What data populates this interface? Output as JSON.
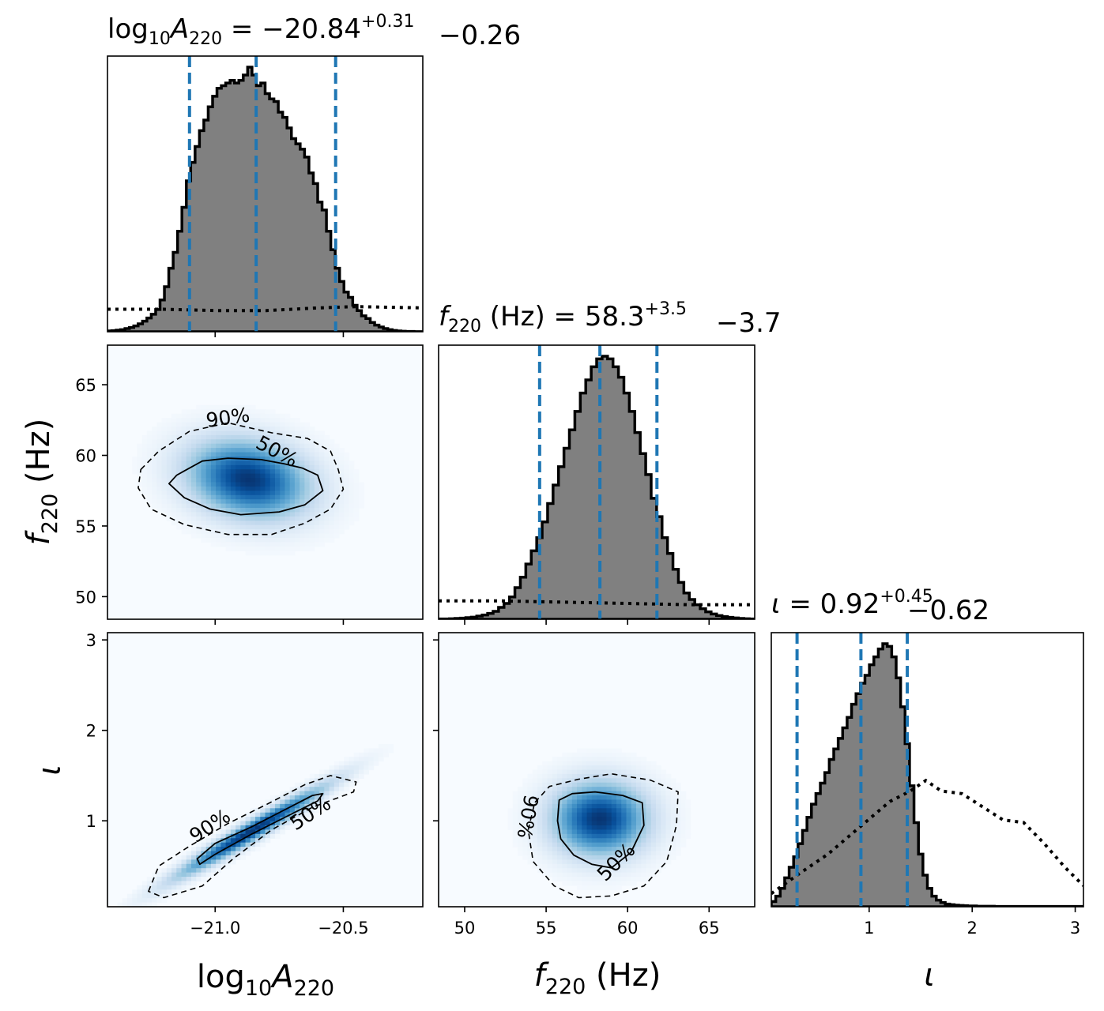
{
  "chart_data": {
    "type": "corner",
    "parameters": [
      {
        "key": "logA",
        "label_main": "log",
        "label_sub1": "10",
        "label_mid": "A",
        "label_sub2": "220",
        "label_unit": "",
        "title_main": "log",
        "title_sub1": "10",
        "title_mid": "A",
        "title_sub2": "220",
        "title_rest": " = −20.84",
        "median": -20.84,
        "err_plus": "+0.31",
        "err_minus": "−0.26",
        "range": [
          -21.42,
          -20.19
        ],
        "ticks": [
          -21.0,
          -20.5
        ],
        "tick_labels": [
          "−21.0",
          "−20.5"
        ],
        "quantiles": [
          -21.1,
          -20.84,
          -20.53
        ]
      },
      {
        "key": "f220",
        "label_main": "f",
        "label_sub1": "220",
        "label_unit": " (Hz)",
        "title_main": "f",
        "title_sub1": "220",
        "title_rest": " (Hz) = 58.3",
        "median": 58.3,
        "err_plus": "+3.5",
        "err_minus": "−3.7",
        "range": [
          48.4,
          67.8
        ],
        "ticks": [
          50,
          55,
          60,
          65
        ],
        "tick_labels": [
          "50",
          "55",
          "60",
          "65"
        ],
        "quantiles": [
          54.6,
          58.3,
          61.8
        ]
      },
      {
        "key": "iota",
        "label_main": "ι",
        "title_main": "ι",
        "title_rest": " = 0.92",
        "median": 0.92,
        "err_plus": "+0.45",
        "err_minus": "−0.62",
        "range": [
          0.05,
          3.08
        ],
        "ticks": [
          1,
          2,
          3
        ],
        "tick_labels": [
          "1",
          "2",
          "3"
        ],
        "quantiles": [
          0.3,
          0.92,
          1.37
        ]
      }
    ],
    "histograms": {
      "logA": {
        "bins": [
          -21.42,
          -20.19
        ],
        "counts": [
          0.003,
          0.004,
          0.006,
          0.008,
          0.012,
          0.016,
          0.022,
          0.03,
          0.04,
          0.052,
          0.066,
          0.084,
          0.12,
          0.17,
          0.24,
          0.3,
          0.38,
          0.47,
          0.57,
          0.64,
          0.7,
          0.76,
          0.8,
          0.85,
          0.89,
          0.92,
          0.93,
          0.94,
          0.95,
          0.94,
          0.95,
          0.97,
          1.0,
          0.97,
          0.93,
          0.94,
          0.9,
          0.88,
          0.87,
          0.83,
          0.81,
          0.77,
          0.73,
          0.71,
          0.69,
          0.66,
          0.6,
          0.56,
          0.49,
          0.46,
          0.38,
          0.31,
          0.24,
          0.19,
          0.15,
          0.13,
          0.1,
          0.08,
          0.06,
          0.05,
          0.035,
          0.025,
          0.018,
          0.012,
          0.008,
          0.005,
          0.003,
          0.002,
          0.001,
          0.001,
          0.0005,
          0.0003
        ]
      },
      "f220": {
        "bins": [
          48.4,
          67.8
        ],
        "counts": [
          0.001,
          0.001,
          0.002,
          0.003,
          0.004,
          0.006,
          0.008,
          0.012,
          0.016,
          0.022,
          0.03,
          0.045,
          0.06,
          0.085,
          0.12,
          0.16,
          0.21,
          0.26,
          0.31,
          0.37,
          0.44,
          0.51,
          0.58,
          0.65,
          0.72,
          0.79,
          0.86,
          0.91,
          0.96,
          0.99,
          1.0,
          0.99,
          0.96,
          0.92,
          0.86,
          0.79,
          0.71,
          0.63,
          0.55,
          0.46,
          0.39,
          0.31,
          0.25,
          0.19,
          0.14,
          0.1,
          0.075,
          0.055,
          0.04,
          0.028,
          0.02,
          0.014,
          0.01,
          0.007,
          0.005,
          0.003,
          0.002,
          0.001
        ]
      },
      "iota": {
        "bins": [
          0.05,
          3.08
        ],
        "counts": [
          0.02,
          0.04,
          0.07,
          0.11,
          0.15,
          0.19,
          0.24,
          0.29,
          0.34,
          0.39,
          0.43,
          0.47,
          0.51,
          0.56,
          0.6,
          0.64,
          0.68,
          0.72,
          0.77,
          0.81,
          0.85,
          0.88,
          0.92,
          0.95,
          0.98,
          1.0,
          0.99,
          0.95,
          0.87,
          0.76,
          0.62,
          0.46,
          0.32,
          0.2,
          0.12,
          0.07,
          0.04,
          0.025,
          0.016,
          0.01,
          0.008,
          0.006,
          0.005,
          0.004,
          0.003,
          0.003,
          0.002,
          0.002,
          0.002,
          0.002,
          0.001,
          0.001,
          0.001,
          0.001,
          0.001,
          0.001,
          0.001,
          0.001,
          0.001,
          0.001,
          0.001,
          0.001,
          0.001,
          0.001,
          0.001,
          0.001,
          0.001,
          0.001,
          0.001,
          0.001
        ]
      }
    },
    "priors": {
      "logA": [
        [
          -21.42,
          0.085
        ],
        [
          -21.2,
          0.085
        ],
        [
          -21.0,
          0.08
        ],
        [
          -20.8,
          0.08
        ],
        [
          -20.6,
          0.09
        ],
        [
          -20.45,
          0.095
        ],
        [
          -20.19,
          0.09
        ]
      ],
      "f220": [
        [
          48.4,
          0.07
        ],
        [
          52,
          0.07
        ],
        [
          56,
          0.065
        ],
        [
          60,
          0.06
        ],
        [
          64,
          0.055
        ],
        [
          67.8,
          0.055
        ]
      ],
      "iota": [
        [
          0.05,
          0.05
        ],
        [
          0.3,
          0.12
        ],
        [
          0.6,
          0.2
        ],
        [
          0.9,
          0.3
        ],
        [
          1.2,
          0.4
        ],
        [
          1.4,
          0.44
        ],
        [
          1.55,
          0.48
        ],
        [
          1.7,
          0.44
        ],
        [
          1.9,
          0.43
        ],
        [
          2.1,
          0.38
        ],
        [
          2.3,
          0.33
        ],
        [
          2.5,
          0.32
        ],
        [
          2.7,
          0.24
        ],
        [
          2.9,
          0.15
        ],
        [
          3.08,
          0.08
        ]
      ]
    },
    "density_2d": [
      {
        "x": "logA",
        "y": "f220",
        "center": [
          -20.87,
          58.3
        ],
        "sigma": [
          0.16,
          1.9
        ],
        "rho": -0.2,
        "contour_levels": [
          "50%",
          "90%"
        ],
        "contour_50": [
          [
            -21.12,
            58.9
          ],
          [
            -21.05,
            59.6
          ],
          [
            -20.95,
            59.8
          ],
          [
            -20.82,
            59.7
          ],
          [
            -20.73,
            59.4
          ],
          [
            -20.66,
            59.1
          ],
          [
            -20.6,
            58.6
          ],
          [
            -20.58,
            57.5
          ],
          [
            -20.65,
            56.5
          ],
          [
            -20.75,
            56.0
          ],
          [
            -20.9,
            55.8
          ],
          [
            -21.02,
            56.2
          ],
          [
            -21.12,
            57.0
          ],
          [
            -21.18,
            58.0
          ],
          [
            -21.15,
            58.6
          ]
        ],
        "contour_90": [
          [
            -21.29,
            59.0
          ],
          [
            -21.22,
            60.3
          ],
          [
            -21.1,
            61.7
          ],
          [
            -20.95,
            62.3
          ],
          [
            -20.78,
            61.6
          ],
          [
            -20.64,
            61.2
          ],
          [
            -20.55,
            60.3
          ],
          [
            -20.52,
            59.0
          ],
          [
            -20.5,
            57.6
          ],
          [
            -20.55,
            56.2
          ],
          [
            -20.65,
            55.2
          ],
          [
            -20.78,
            54.4
          ],
          [
            -20.95,
            54.4
          ],
          [
            -21.12,
            55.1
          ],
          [
            -21.25,
            56.2
          ],
          [
            -21.3,
            57.7
          ]
        ]
      },
      {
        "x": "f220",
        "y": "iota",
        "center": [
          58.3,
          1.02
        ],
        "sigma": [
          2.0,
          0.28
        ],
        "rho": 0.0,
        "contour_levels": [
          "50%",
          "90%"
        ],
        "contour_50": [
          [
            55.7,
            1.0
          ],
          [
            55.8,
            1.23
          ],
          [
            56.6,
            1.3
          ],
          [
            58.0,
            1.32
          ],
          [
            59.7,
            1.28
          ],
          [
            60.9,
            1.2
          ],
          [
            61.0,
            0.95
          ],
          [
            60.2,
            0.65
          ],
          [
            59.0,
            0.48
          ],
          [
            57.8,
            0.52
          ],
          [
            56.7,
            0.62
          ],
          [
            55.9,
            0.8
          ]
        ],
        "contour_90": [
          [
            53.9,
            0.9
          ],
          [
            54.3,
            1.2
          ],
          [
            55.2,
            1.38
          ],
          [
            57.0,
            1.46
          ],
          [
            59.0,
            1.52
          ],
          [
            61.4,
            1.45
          ],
          [
            63.1,
            1.32
          ],
          [
            63.0,
            0.95
          ],
          [
            62.4,
            0.55
          ],
          [
            61.0,
            0.28
          ],
          [
            59.0,
            0.17
          ],
          [
            57.0,
            0.15
          ],
          [
            55.5,
            0.28
          ],
          [
            54.2,
            0.55
          ]
        ]
      },
      {
        "x": "logA",
        "y": "iota",
        "center": [
          -20.86,
          0.88
        ],
        "sigma": [
          0.2,
          0.35
        ],
        "rho": 0.97,
        "contour_levels": [
          "50%",
          "90%"
        ],
        "contour_50": [
          [
            -21.07,
            0.58
          ],
          [
            -21.0,
            0.75
          ],
          [
            -20.86,
            0.93
          ],
          [
            -20.73,
            1.12
          ],
          [
            -20.62,
            1.28
          ],
          [
            -20.58,
            1.3
          ],
          [
            -20.6,
            1.22
          ],
          [
            -20.72,
            1.05
          ],
          [
            -20.86,
            0.85
          ],
          [
            -21.0,
            0.63
          ],
          [
            -21.06,
            0.52
          ]
        ],
        "contour_90": [
          [
            -21.26,
            0.22
          ],
          [
            -21.22,
            0.5
          ],
          [
            -21.1,
            0.72
          ],
          [
            -20.95,
            0.97
          ],
          [
            -20.8,
            1.18
          ],
          [
            -20.65,
            1.4
          ],
          [
            -20.55,
            1.5
          ],
          [
            -20.45,
            1.43
          ],
          [
            -20.46,
            1.32
          ],
          [
            -20.62,
            1.15
          ],
          [
            -20.78,
            0.9
          ],
          [
            -20.93,
            0.58
          ],
          [
            -21.05,
            0.28
          ],
          [
            -21.2,
            0.15
          ]
        ]
      }
    ]
  }
}
